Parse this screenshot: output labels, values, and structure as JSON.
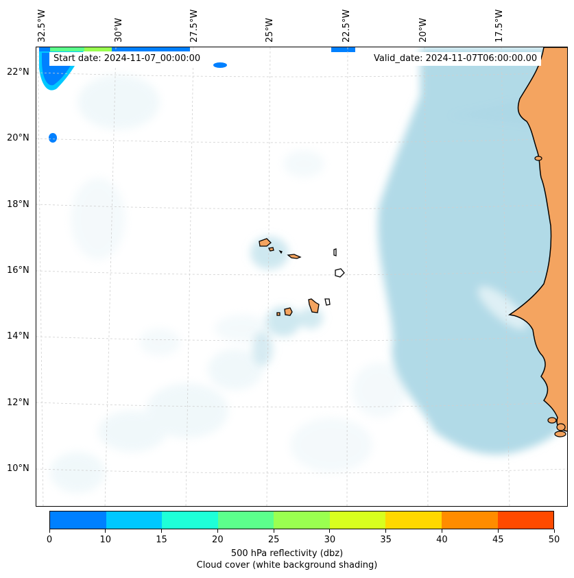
{
  "map": {
    "start_date": "Start date: 2024-11-07_00:00:00",
    "valid_date": "Valid_date: 2024-11-07T06:00:00.00",
    "lon_labels": [
      "32.5°W",
      "30°W",
      "27.5°W",
      "25°W",
      "22.5°W",
      "20°W",
      "17.5°W"
    ],
    "lat_labels": [
      "22°N",
      "20°N",
      "18°N",
      "16°N",
      "14°N",
      "12°N",
      "10°N"
    ],
    "land_color": "#f4a460",
    "cloud_color": "#add8e6",
    "grid_color": "#cfcfcf"
  },
  "colorbar": {
    "ticks": [
      "0",
      "10",
      "15",
      "20",
      "25",
      "30",
      "35",
      "40",
      "45",
      "50"
    ],
    "colors": [
      "#0080ff",
      "#00c8ff",
      "#1effd8",
      "#5cff8c",
      "#9aff50",
      "#d8ff1e",
      "#ffd800",
      "#ff8c00",
      "#ff4a00"
    ],
    "label": "500 hPa reflectivity (dbz)",
    "sublabel": "Cloud cover (white background shading)"
  }
}
